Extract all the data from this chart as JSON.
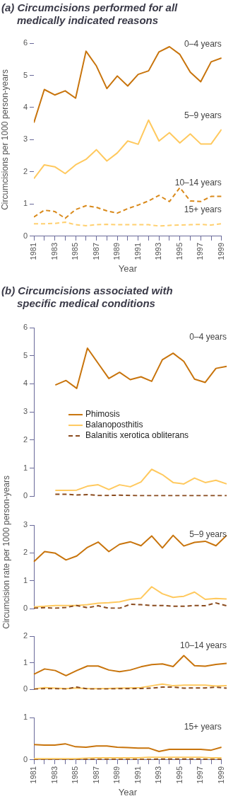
{
  "chart_data": [
    {
      "type": "line",
      "title": "(a) Circumcisions performed for all medically indicated reasons",
      "xlabel": "Year",
      "ylabel": "Circumcisions per 1000 person-years",
      "marker": "none",
      "x": [
        1981,
        1982,
        1983,
        1984,
        1985,
        1986,
        1987,
        1988,
        1989,
        1990,
        1991,
        1992,
        1993,
        1994,
        1995,
        1996,
        1997,
        1998,
        1999
      ],
      "xlim": [
        1981,
        1999
      ],
      "xticks": [
        1981,
        {
          "value": 1982,
          "label": null
        },
        1983,
        {
          "value": 1984,
          "label": null
        },
        1985,
        {
          "value": 1986,
          "label": null
        },
        1987,
        {
          "value": 1988,
          "label": null
        },
        1989,
        {
          "value": 1990,
          "label": null
        },
        1991,
        {
          "value": 1992,
          "label": null
        },
        1993,
        {
          "value": 1994,
          "label": null
        },
        1995,
        {
          "value": 1996,
          "label": null
        },
        1997,
        {
          "value": 1998,
          "label": null
        },
        1999
      ],
      "ylim": [
        0,
        6
      ],
      "yticks": [
        0,
        1,
        2,
        3,
        4,
        5,
        6
      ],
      "series": [
        {
          "name": "0–4 years",
          "color": "#c8740c",
          "values": [
            3.53,
            4.56,
            4.39,
            4.52,
            4.29,
            5.75,
            5.29,
            4.59,
            4.98,
            4.67,
            5.03,
            5.14,
            5.73,
            5.89,
            5.65,
            5.1,
            4.8,
            5.42,
            5.54
          ]
        },
        {
          "name": "5–9 years",
          "color": "#ffc95e",
          "values": [
            1.79,
            2.22,
            2.16,
            1.95,
            2.22,
            2.39,
            2.69,
            2.34,
            2.59,
            2.96,
            2.86,
            3.61,
            2.96,
            3.22,
            2.9,
            3.18,
            2.87,
            2.87,
            3.32
          ]
        },
        {
          "name": "10–14 years",
          "color": "#d98a1c",
          "line_style": "dashed",
          "values": [
            0.6,
            0.81,
            0.77,
            0.56,
            0.83,
            0.95,
            0.9,
            0.79,
            0.72,
            0.86,
            0.97,
            1.1,
            1.27,
            1.08,
            1.51,
            1.1,
            1.08,
            1.24,
            1.24
          ]
        },
        {
          "name": "15+ years",
          "color": "#ffd070",
          "line_style": "dashed",
          "values": [
            0.39,
            0.39,
            0.4,
            0.44,
            0.36,
            0.33,
            0.36,
            0.37,
            0.36,
            0.36,
            0.36,
            0.36,
            0.32,
            0.34,
            0.35,
            0.36,
            0.37,
            0.35,
            0.39
          ]
        }
      ]
    },
    {
      "type": "line",
      "title": "(b) Circumcisions associated with specific medical conditions",
      "annotations": [
        "0–4 years"
      ],
      "legend": "left",
      "marker": "none",
      "tick_labels": "y",
      "categories": [
        null,
        null,
        null,
        null,
        null,
        null,
        null,
        null,
        null,
        null,
        null,
        null,
        null,
        null,
        null,
        null,
        null,
        null,
        null
      ],
      "ylim": [
        0,
        6
      ],
      "yticks": [
        0,
        1,
        2,
        3,
        4,
        5,
        6
      ],
      "series": [
        {
          "name": "Phimosis",
          "color": "#c8740c",
          "values": [
            null,
            null,
            3.96,
            4.12,
            3.84,
            5.27,
            4.73,
            4.19,
            4.41,
            4.15,
            4.25,
            4.09,
            4.86,
            5.09,
            4.8,
            4.17,
            4.05,
            4.55,
            4.62
          ]
        },
        {
          "name": "Balanoposthitis",
          "color": "#ffc95e",
          "values": [
            null,
            null,
            0.21,
            0.21,
            0.22,
            0.36,
            0.41,
            0.24,
            0.41,
            0.34,
            0.51,
            0.96,
            0.77,
            0.49,
            0.44,
            0.65,
            0.49,
            0.57,
            0.44
          ]
        },
        {
          "name": "Balanitis xerotica obliterans",
          "color": "#8a4b1e",
          "line_style": "dashed",
          "values": [
            null,
            null,
            0.07,
            0.07,
            0.05,
            0.06,
            0.03,
            0.03,
            0.04,
            0.03,
            0.02,
            0.02,
            0.02,
            0.02,
            0.02,
            0.02,
            0.02,
            0.02,
            0.02
          ]
        }
      ]
    },
    {
      "type": "line",
      "ylabel": "Circumcision rate per 1000 person-years",
      "annotations": [
        "5–9 years"
      ],
      "marker": "none",
      "tick_labels": "y",
      "categories": [
        null,
        null,
        null,
        null,
        null,
        null,
        null,
        null,
        null,
        null,
        null,
        null,
        null,
        null,
        null,
        null,
        null,
        null,
        null
      ],
      "ylim": [
        0,
        3
      ],
      "yticks": [
        0,
        1,
        2,
        3
      ],
      "series": [
        {
          "color": "#c8740c",
          "values": [
            1.69,
            2.05,
            1.99,
            1.75,
            1.89,
            2.2,
            2.39,
            2.05,
            2.31,
            2.4,
            2.26,
            2.61,
            2.18,
            2.63,
            2.25,
            2.38,
            2.42,
            2.26,
            2.63
          ]
        },
        {
          "color": "#ffc95e",
          "values": [
            0.07,
            0.09,
            0.12,
            0.12,
            0.12,
            0.15,
            0.2,
            0.22,
            0.25,
            0.34,
            0.38,
            0.79,
            0.54,
            0.41,
            0.45,
            0.6,
            0.34,
            0.37,
            0.35
          ]
        },
        {
          "color": "#8a4b1e",
          "line_style": "dashed",
          "values": [
            0.02,
            0.04,
            0.02,
            0.05,
            0.12,
            0.04,
            0.11,
            0.02,
            0.02,
            0.16,
            0.15,
            0.12,
            0.12,
            0.09,
            0.09,
            0.12,
            0.11,
            0.21,
            0.11
          ]
        }
      ]
    },
    {
      "type": "line",
      "annotations": [
        "10–14 years"
      ],
      "marker": "none",
      "tick_labels": "y",
      "categories": [
        null,
        null,
        null,
        null,
        null,
        null,
        null,
        null,
        null,
        null,
        null,
        null,
        null,
        null,
        null,
        null,
        null,
        null,
        null
      ],
      "ylim": [
        0,
        2
      ],
      "yticks": [
        0,
        1,
        2
      ],
      "series": [
        {
          "color": "#c8740c",
          "values": [
            0.57,
            0.77,
            0.71,
            0.52,
            0.71,
            0.88,
            0.88,
            0.73,
            0.67,
            0.73,
            0.85,
            0.93,
            0.96,
            0.86,
            1.27,
            0.89,
            0.87,
            0.94,
            0.98
          ]
        },
        {
          "color": "#ffc95e",
          "values": [
            0.02,
            0.07,
            0.05,
            0.03,
            0.06,
            0.03,
            0.03,
            0.04,
            0.05,
            0.06,
            0.07,
            0.14,
            0.2,
            0.14,
            0.16,
            0.16,
            0.16,
            0.13,
            0.14
          ]
        },
        {
          "color": "#8a4b1e",
          "line_style": "dashed",
          "values": [
            0.01,
            0.03,
            0.03,
            0.02,
            0.09,
            0.02,
            0.02,
            0.02,
            0.03,
            0.03,
            0.04,
            0.05,
            0.09,
            0.09,
            0.05,
            0.06,
            0.06,
            0.09,
            0.05
          ]
        }
      ]
    },
    {
      "type": "line",
      "xlabel": "Year",
      "annotations": [
        "15+ years"
      ],
      "marker": "none",
      "x": [
        1981,
        1982,
        1983,
        1984,
        1985,
        1986,
        1987,
        1988,
        1989,
        1990,
        1991,
        1992,
        1993,
        1994,
        1995,
        1996,
        1997,
        1998,
        1999
      ],
      "xlim": [
        1981,
        1999
      ],
      "xticks": [
        1981,
        {
          "value": 1982,
          "label": null
        },
        1983,
        {
          "value": 1984,
          "label": null
        },
        1985,
        {
          "value": 1986,
          "label": null
        },
        1987,
        {
          "value": 1988,
          "label": null
        },
        1989,
        {
          "value": 1990,
          "label": null
        },
        1991,
        {
          "value": 1992,
          "label": null
        },
        1993,
        {
          "value": 1994,
          "label": null
        },
        1995,
        {
          "value": 1996,
          "label": null
        },
        1997,
        {
          "value": 1998,
          "label": null
        },
        1999
      ],
      "ylim": [
        0,
        1
      ],
      "yticks": [
        0,
        1
      ],
      "series": [
        {
          "color": "#c8740c",
          "values": [
            0.36,
            0.35,
            0.35,
            0.38,
            0.31,
            0.3,
            0.33,
            0.33,
            0.3,
            0.29,
            0.28,
            0.28,
            0.2,
            0.25,
            0.25,
            0.25,
            0.25,
            0.23,
            0.3
          ]
        },
        {
          "color": "#ffc95e",
          "values": [
            0.03,
            0.03,
            0.03,
            0.03,
            0.03,
            0.04,
            0.05,
            0.05,
            0.05,
            0.05,
            0.05,
            0.06,
            0.06,
            0.06,
            0.06,
            0.06,
            0.06,
            0.05,
            0.05
          ]
        },
        {
          "color": "#8a4b1e",
          "line_style": "dashed",
          "values": [
            0.0,
            0.0,
            0.0,
            0.0,
            0.0,
            0.01,
            0.01,
            0.01,
            0.01,
            0.01,
            0.01,
            0.01,
            0.02,
            0.02,
            0.02,
            0.02,
            0.02,
            0.01,
            0.01
          ]
        }
      ]
    }
  ]
}
